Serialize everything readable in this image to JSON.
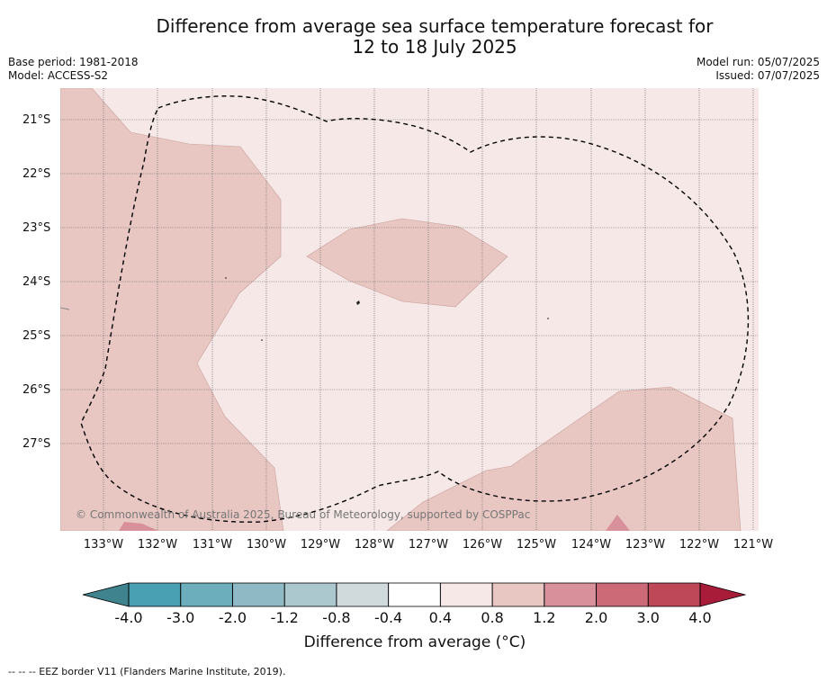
{
  "title_line1": "Difference from average sea surface temperature forecast for",
  "title_line2": "12 to 18 July 2025",
  "meta_left": [
    "Base period: 1981-2018",
    "Model: ACCESS-S2"
  ],
  "meta_right": [
    "Model run: 05/07/2025",
    "Issued: 07/07/2025"
  ],
  "latitude_labels": [
    "21°S",
    "22°S",
    "23°S",
    "24°S",
    "25°S",
    "26°S",
    "27°S"
  ],
  "longitude_labels": [
    "133°W",
    "132°W",
    "131°W",
    "130°W",
    "129°W",
    "128°W",
    "127°W",
    "126°W",
    "125°W",
    "124°W",
    "123°W",
    "122°W",
    "121°W"
  ],
  "copyright": "© Commonwealth of Australia 2025, Bureau of Meteorology, supported by COSPPac",
  "colorbar": {
    "ticks": [
      "-4.0",
      "-3.0",
      "-2.0",
      "-1.2",
      "-0.8",
      "-0.4",
      "0.4",
      "0.8",
      "1.2",
      "2.0",
      "3.0",
      "4.0"
    ],
    "colors": [
      "#3f838e",
      "#4aa0b3",
      "#6caebc",
      "#8fb9c5",
      "#aac8cd",
      "#d0d9db",
      "#ffffff",
      "#f5e8e7",
      "#e8c6c2",
      "#d8909a",
      "#cc6a78",
      "#be4758",
      "#a81c3a"
    ],
    "label": "Difference from average (°C)"
  },
  "legend_footnote": "-- -- -- EEZ border V11 (Flanders Marine Institute, 2019).",
  "map": {
    "value_classes": {
      "background": "0.4 to 0.8",
      "shaded_regions": "0.8 to 1.2",
      "small_patches": "1.2 to 2.0"
    },
    "colors": {
      "background": "#f5e8e7",
      "shaded": "#e8c6c2",
      "hot": "#d8909a"
    }
  }
}
